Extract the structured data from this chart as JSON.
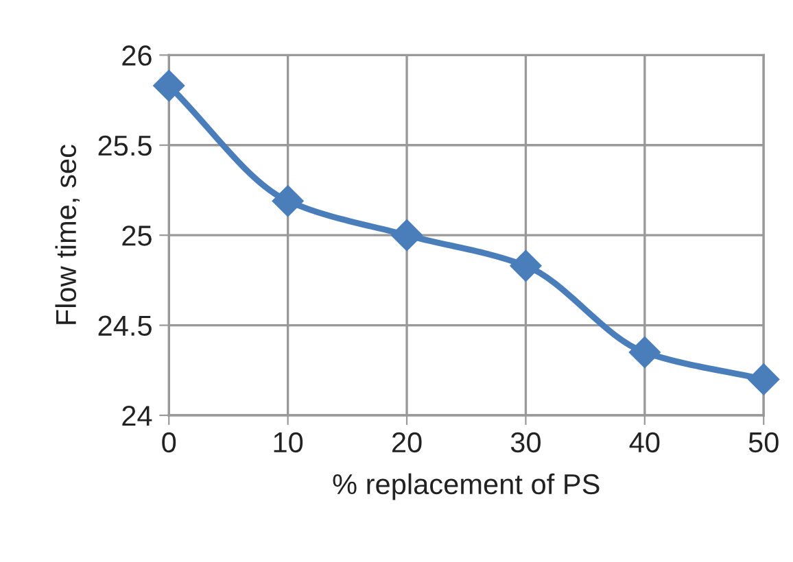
{
  "chart_data": {
    "type": "line",
    "xlabel": "% replacement of PS",
    "ylabel": "Flow time, sec",
    "x": [
      0,
      10,
      20,
      30,
      40,
      50
    ],
    "series": [
      {
        "color": "#4a7ebb",
        "values": [
          25.83,
          25.19,
          25.0,
          24.83,
          24.35,
          24.2
        ]
      }
    ],
    "xlim": [
      0,
      50
    ],
    "xticks": [
      0,
      10,
      20,
      30,
      40,
      50
    ],
    "ylim": [
      24,
      26
    ],
    "yticks": [
      24,
      24.5,
      25,
      25.5,
      26
    ],
    "grid": true,
    "marker": "diamond",
    "line_style": "solid",
    "legend": false
  }
}
